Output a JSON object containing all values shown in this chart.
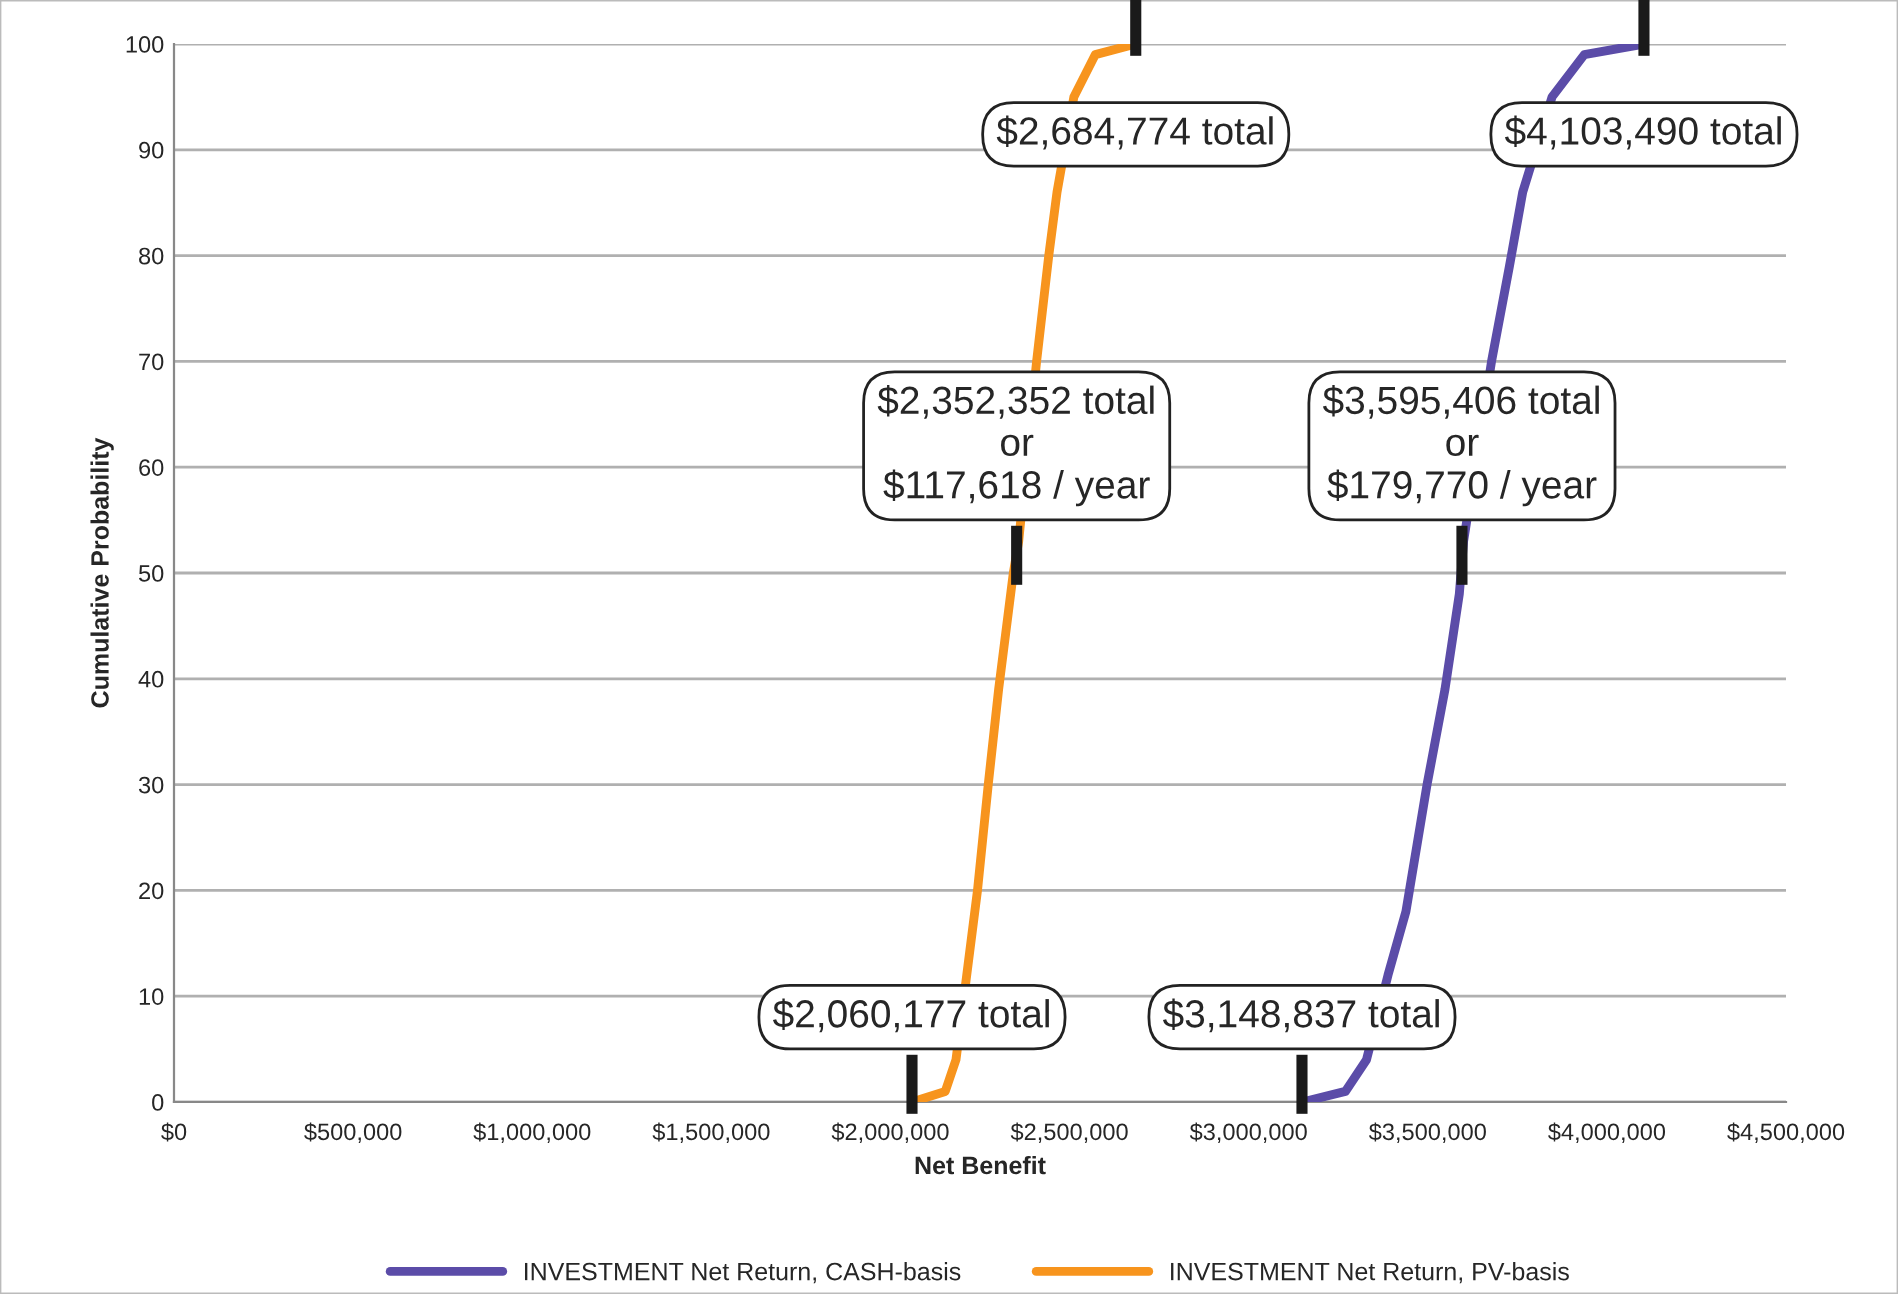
{
  "chart_data": {
    "type": "line",
    "xlabel": "Net Benefit",
    "ylabel": "Cumulative Probability",
    "series": [
      {
        "name": "INVESTMENT Net Return, CASH-basis",
        "color": "#5b4ca8",
        "x": [
          3150000,
          3270000,
          3329000,
          3389000,
          3439000,
          3498000,
          3548000,
          3588000,
          3600000,
          3628000,
          3678000,
          3728000,
          3765000,
          3787000,
          3847000,
          3937000,
          4103490
        ],
        "values": [
          0,
          1,
          4,
          12,
          18,
          30,
          39,
          48,
          53,
          null,
          70,
          79,
          86,
          null,
          95,
          99,
          100
        ]
      },
      {
        "name": "INVESTMENT Net Return, PV-basis",
        "color": "#f7941d",
        "x": [
          2060177,
          2153000,
          2183000,
          2213000,
          2243000,
          2273000,
          2302000,
          2343000,
          2358000,
          2372000,
          2408000,
          2442000,
          2465000,
          2482000,
          2512000,
          2572000,
          2684774
        ],
        "values": [
          0,
          1,
          4,
          12,
          20,
          30,
          39,
          50,
          53,
          null,
          70,
          80,
          86,
          null,
          95,
          99,
          100
        ]
      }
    ],
    "xlim": [
      0,
      4500000
    ],
    "xticks": [
      {
        "value": 0,
        "label": "$0"
      },
      {
        "value": 500000,
        "label": "$500,000"
      },
      {
        "value": 1000000,
        "label": "$1,000,000"
      },
      {
        "value": 1500000,
        "label": "$1,500,000"
      },
      {
        "value": 2000000,
        "label": "$2,000,000"
      },
      {
        "value": 2500000,
        "label": "$2,500,000"
      },
      {
        "value": 3000000,
        "label": "$3,000,000"
      },
      {
        "value": 3500000,
        "label": "$3,500,000"
      },
      {
        "value": 4000000,
        "label": "$4,000,000"
      },
      {
        "value": 4500000,
        "label": "$4,500,000"
      }
    ],
    "ylim": [
      0,
      100
    ],
    "yticks": [
      0,
      10,
      20,
      30,
      40,
      50,
      60,
      70,
      80,
      90,
      100
    ],
    "grid": "y",
    "legend": "bottom",
    "marker": "none",
    "line_style": "solid",
    "annotations": [
      {
        "text": "$2,060,177 total",
        "x": 2060177,
        "y": 0
      },
      {
        "text": "$3,148,837 total",
        "x": 3148837,
        "y": 0
      },
      {
        "text": "$2,352,352 total\nor\n$117,618 / year",
        "x": 2352352,
        "y": 50
      },
      {
        "text": "$3,595,406 total\nor\n$179,770 / year",
        "x": 3595406,
        "y": 50
      },
      {
        "text": "$2,684,774 total",
        "x": 2684774,
        "y": 100
      },
      {
        "text": "$4,103,490 total",
        "x": 4103490,
        "y": 100
      }
    ]
  }
}
